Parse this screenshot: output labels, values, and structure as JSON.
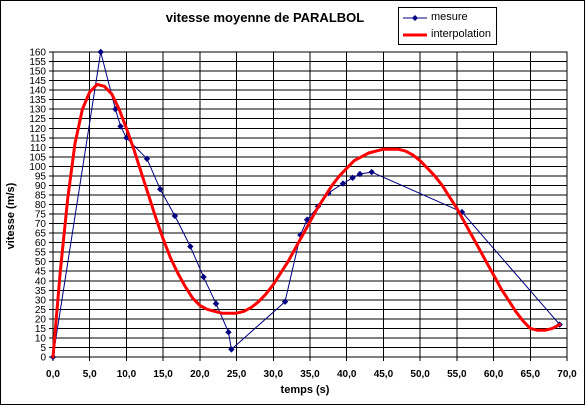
{
  "chart_data": {
    "type": "line",
    "title": "vitesse moyenne de PARALBOL",
    "xlabel": "temps (s)",
    "ylabel": "vitesse (m/s)",
    "xlim": [
      0,
      70
    ],
    "ylim": [
      0,
      160
    ],
    "x_ticks": [
      "0,0",
      "5,0",
      "10,0",
      "15,0",
      "20,0",
      "25,0",
      "30,0",
      "35,0",
      "40,0",
      "45,0",
      "50,0",
      "55,0",
      "60,0",
      "65,0",
      "70,0"
    ],
    "x_tick_values": [
      0,
      5,
      10,
      15,
      20,
      25,
      30,
      35,
      40,
      45,
      50,
      55,
      60,
      65,
      70
    ],
    "y_ticks": [
      0,
      5,
      10,
      15,
      20,
      25,
      30,
      35,
      40,
      45,
      50,
      55,
      60,
      65,
      70,
      75,
      80,
      85,
      90,
      95,
      100,
      105,
      110,
      115,
      120,
      125,
      130,
      135,
      140,
      145,
      150,
      155,
      160
    ],
    "grid": true,
    "legend_position": "top-right",
    "series": [
      {
        "name": "mesure",
        "color": "#000080",
        "marker": "diamond",
        "points": [
          [
            0,
            0
          ],
          [
            6.5,
            160
          ],
          [
            8.5,
            130
          ],
          [
            9.2,
            121
          ],
          [
            10,
            115
          ],
          [
            12.8,
            104
          ],
          [
            14.6,
            88
          ],
          [
            16.6,
            74
          ],
          [
            18.7,
            58
          ],
          [
            20.5,
            42
          ],
          [
            22.2,
            28
          ],
          [
            23.9,
            13
          ],
          [
            24.3,
            4
          ],
          [
            31.6,
            29
          ],
          [
            33.7,
            64
          ],
          [
            34.6,
            72
          ],
          [
            36.1,
            79
          ],
          [
            37.5,
            86
          ],
          [
            39.5,
            91
          ],
          [
            40.8,
            94
          ],
          [
            41.8,
            96
          ],
          [
            43.4,
            97
          ],
          [
            55.7,
            76
          ],
          [
            69,
            17
          ]
        ]
      },
      {
        "name": "interpolation",
        "color": "#ff0000",
        "points": [
          [
            0,
            0
          ],
          [
            1,
            45
          ],
          [
            2,
            83
          ],
          [
            3,
            112
          ],
          [
            4,
            130
          ],
          [
            5,
            139
          ],
          [
            6,
            143
          ],
          [
            7,
            142
          ],
          [
            8,
            138
          ],
          [
            9,
            130
          ],
          [
            10,
            120
          ],
          [
            11,
            109
          ],
          [
            12,
            97
          ],
          [
            13,
            85
          ],
          [
            14,
            73
          ],
          [
            15,
            62
          ],
          [
            16,
            52
          ],
          [
            17,
            44
          ],
          [
            18,
            37
          ],
          [
            19,
            31
          ],
          [
            20,
            27
          ],
          [
            21,
            25
          ],
          [
            22,
            24
          ],
          [
            23,
            23
          ],
          [
            24,
            23
          ],
          [
            25,
            23
          ],
          [
            26,
            24
          ],
          [
            27,
            26
          ],
          [
            28,
            29
          ],
          [
            29,
            33
          ],
          [
            30,
            38
          ],
          [
            31,
            44
          ],
          [
            32,
            50
          ],
          [
            33,
            57
          ],
          [
            34,
            64
          ],
          [
            35,
            71
          ],
          [
            36,
            78
          ],
          [
            37,
            84
          ],
          [
            38,
            90
          ],
          [
            39,
            95
          ],
          [
            40,
            99
          ],
          [
            41,
            103
          ],
          [
            42,
            105
          ],
          [
            43,
            107
          ],
          [
            44,
            108
          ],
          [
            45,
            109
          ],
          [
            46,
            109
          ],
          [
            47,
            109
          ],
          [
            48,
            108
          ],
          [
            49,
            106
          ],
          [
            50,
            103
          ],
          [
            51,
            99
          ],
          [
            52,
            95
          ],
          [
            53,
            90
          ],
          [
            54,
            84
          ],
          [
            55,
            78
          ],
          [
            56,
            71
          ],
          [
            57,
            64
          ],
          [
            58,
            57
          ],
          [
            59,
            50
          ],
          [
            60,
            43
          ],
          [
            61,
            36
          ],
          [
            62,
            30
          ],
          [
            63,
            24
          ],
          [
            64,
            19
          ],
          [
            65,
            15
          ],
          [
            66,
            14
          ],
          [
            67,
            14
          ],
          [
            68,
            15
          ],
          [
            69,
            17
          ]
        ]
      }
    ]
  }
}
